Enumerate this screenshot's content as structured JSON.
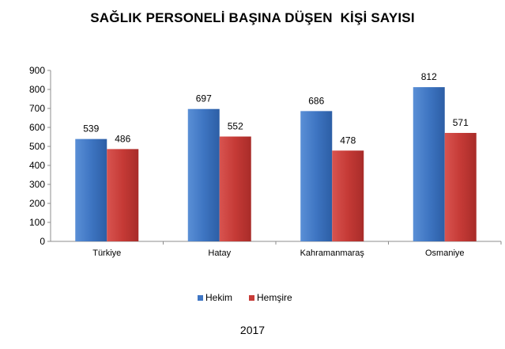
{
  "chart_data": {
    "type": "bar",
    "title": "SAĞLIK PERSONELİ BAŞINA DÜŞEN  KİŞİ SAYISI",
    "categories": [
      "Türkiye",
      "Hatay",
      "Kahramanmaraş",
      "Osmaniye"
    ],
    "series": [
      {
        "name": "Hekim",
        "values": [
          539,
          697,
          686,
          812
        ],
        "color": "#3f76c4"
      },
      {
        "name": "Hemşire",
        "values": [
          486,
          552,
          478,
          571
        ],
        "color": "#c73b37"
      }
    ],
    "ylim": [
      0,
      900
    ],
    "yticks": [
      0,
      100,
      200,
      300,
      400,
      500,
      600,
      700,
      800,
      900
    ],
    "grid": false,
    "data_labels": true,
    "legend_placement": "bottom",
    "footer": "2017"
  }
}
